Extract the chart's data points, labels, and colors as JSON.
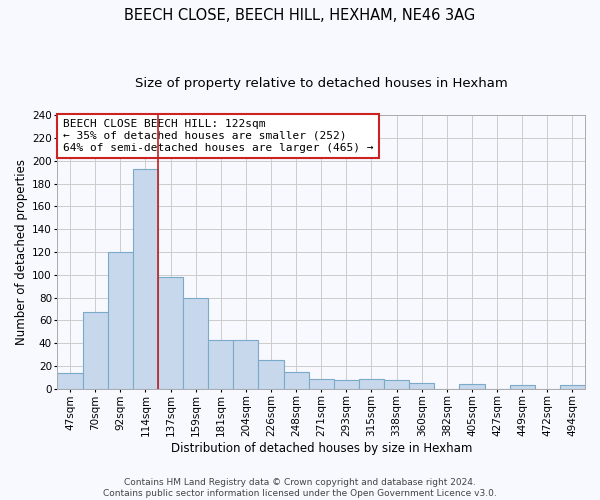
{
  "title": "BEECH CLOSE, BEECH HILL, HEXHAM, NE46 3AG",
  "subtitle": "Size of property relative to detached houses in Hexham",
  "xlabel": "Distribution of detached houses by size in Hexham",
  "ylabel": "Number of detached properties",
  "categories": [
    "47sqm",
    "70sqm",
    "92sqm",
    "114sqm",
    "137sqm",
    "159sqm",
    "181sqm",
    "204sqm",
    "226sqm",
    "248sqm",
    "271sqm",
    "293sqm",
    "315sqm",
    "338sqm",
    "360sqm",
    "382sqm",
    "405sqm",
    "427sqm",
    "449sqm",
    "472sqm",
    "494sqm"
  ],
  "values": [
    14,
    67,
    120,
    193,
    98,
    80,
    43,
    43,
    25,
    15,
    9,
    8,
    9,
    8,
    5,
    0,
    4,
    0,
    3,
    0,
    3
  ],
  "bar_color": "#c8d8ec",
  "bar_edge_color": "#7aaac8",
  "bar_linewidth": 0.8,
  "vline_x_index": 3.5,
  "vline_color": "#bb2222",
  "annotation_line1": "BEECH CLOSE BEECH HILL: 122sqm",
  "annotation_line2": "← 35% of detached houses are smaller (252)",
  "annotation_line3": "64% of semi-detached houses are larger (465) →",
  "annotation_box_color": "#cc2222",
  "annotation_box_facecolor": "#ffffff",
  "ylim": [
    0,
    240
  ],
  "yticks": [
    0,
    20,
    40,
    60,
    80,
    100,
    120,
    140,
    160,
    180,
    200,
    220,
    240
  ],
  "grid_color": "#cccccc",
  "background_color": "#f8f8ff",
  "footer_line1": "Contains HM Land Registry data © Crown copyright and database right 2024.",
  "footer_line2": "Contains public sector information licensed under the Open Government Licence v3.0.",
  "title_fontsize": 10.5,
  "subtitle_fontsize": 9.5,
  "xlabel_fontsize": 8.5,
  "ylabel_fontsize": 8.5,
  "tick_fontsize": 7.5,
  "annotation_fontsize": 8,
  "footer_fontsize": 6.5
}
